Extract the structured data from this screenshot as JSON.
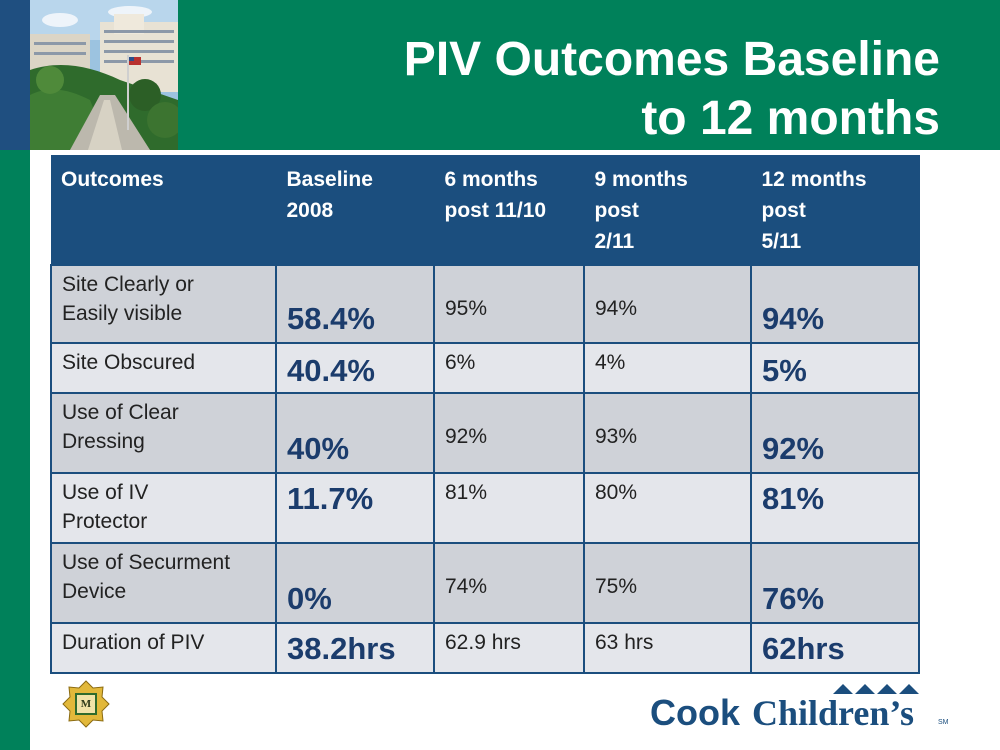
{
  "slide": {
    "title_line1": "PIV Outcomes Baseline",
    "title_line2": "to 12 months"
  },
  "table": {
    "headers": [
      [
        "Outcomes"
      ],
      [
        "Baseline",
        "2008"
      ],
      [
        "6 months",
        "post 11/10"
      ],
      [
        "9 months",
        "post",
        "2/11"
      ],
      [
        "12 months",
        "post",
        "5/11"
      ]
    ],
    "rows": [
      {
        "label": [
          "Site Clearly or",
          "Easily visible"
        ],
        "baseline": "58.4%",
        "m6": "95%",
        "m9": "94%",
        "m12": "94%"
      },
      {
        "label": [
          "Site Obscured"
        ],
        "baseline": "40.4%",
        "m6": "6%",
        "m9": "4%",
        "m12": "5%"
      },
      {
        "label": [
          "Use of Clear",
          "Dressing"
        ],
        "baseline": "40%",
        "m6": "92%",
        "m9": "93%",
        "m12": "92%"
      },
      {
        "label": [
          "Use of IV",
          "Protector"
        ],
        "baseline": "11.7%",
        "m6": "81%",
        "m9": "80%",
        "m12": "81%"
      },
      {
        "label": [
          "Use of Securment",
          "Device"
        ],
        "baseline": "0%",
        "m6": "74%",
        "m9": "75%",
        "m12": "76%"
      },
      {
        "label": [
          "Duration of PIV"
        ],
        "baseline": "38.2hrs",
        "m6": "62.9 hrs",
        "m9": "63 hrs",
        "m12": "62hrs"
      }
    ]
  },
  "brand": {
    "name_part1": "Cook",
    "name_part2": "Children’s",
    "tm": "SM",
    "badge_letter": "M"
  },
  "colors": {
    "green": "#00815a",
    "navy": "#1b4e7e",
    "row_dark": "#cfd2d8",
    "row_light": "#e4e6eb"
  }
}
